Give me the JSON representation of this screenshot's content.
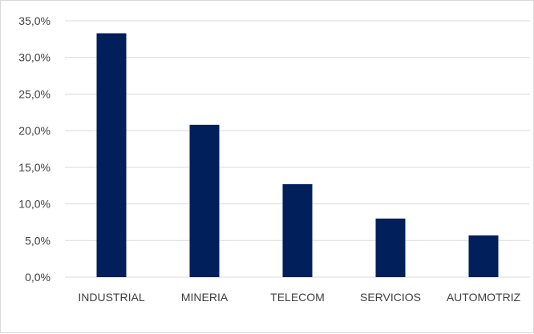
{
  "chart_data": {
    "type": "bar",
    "title": "",
    "xlabel": "",
    "ylabel": "",
    "categories": [
      "INDUSTRIAL",
      "MINERIA",
      "TELECOM",
      "SERVICIOS",
      "AUTOMOTRIZ"
    ],
    "values": [
      33.3,
      20.8,
      12.7,
      8.0,
      5.7
    ],
    "ylim": [
      0,
      35
    ],
    "y_ticks": [
      "0,0%",
      "5,0%",
      "10,0%",
      "15,0%",
      "20,0%",
      "25,0%",
      "30,0%",
      "35,0%"
    ],
    "grid": true,
    "legend": "none",
    "colors": {
      "bar": "#001f5b",
      "grid": "#d9d9d9",
      "text": "#404040"
    }
  }
}
